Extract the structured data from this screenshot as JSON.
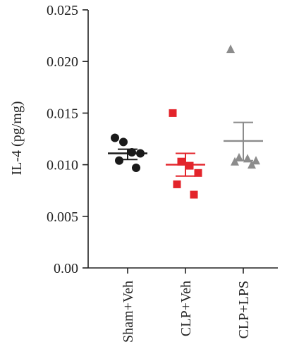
{
  "chart_data": {
    "type": "scatter",
    "ylabel": "IL-4 (pg/mg)",
    "ylim": [
      0,
      0.025
    ],
    "yticks": [
      "0.00",
      "0.005",
      "0.010",
      "0.015",
      "0.020",
      "0.025"
    ],
    "yticks_values": [
      0,
      0.005,
      0.01,
      0.015,
      0.02,
      0.025
    ],
    "categories": [
      "Sham+Veh",
      "CLP+Veh",
      "CLP+LPS"
    ],
    "grid": false,
    "series": [
      {
        "category": "Sham+Veh",
        "marker": "circle",
        "color": "#1a1a1a",
        "points": [
          0.0126,
          0.0122,
          0.0112,
          0.0111,
          0.0104,
          0.0097
        ],
        "mean": 0.0111,
        "sem": [
          0.0105,
          0.0115
        ]
      },
      {
        "category": "CLP+Veh",
        "marker": "square",
        "color": "#e3242b",
        "points": [
          0.015,
          0.0103,
          0.0099,
          0.0092,
          0.0081,
          0.0071
        ],
        "mean": 0.01,
        "sem": [
          0.0089,
          0.0111
        ]
      },
      {
        "category": "CLP+LPS",
        "marker": "triangle",
        "color": "#8c8c8c",
        "points": [
          0.0212,
          0.0107,
          0.0106,
          0.0104,
          0.0103,
          0.01
        ],
        "mean": 0.0123,
        "sem": [
          0.0104,
          0.0141
        ]
      }
    ]
  }
}
